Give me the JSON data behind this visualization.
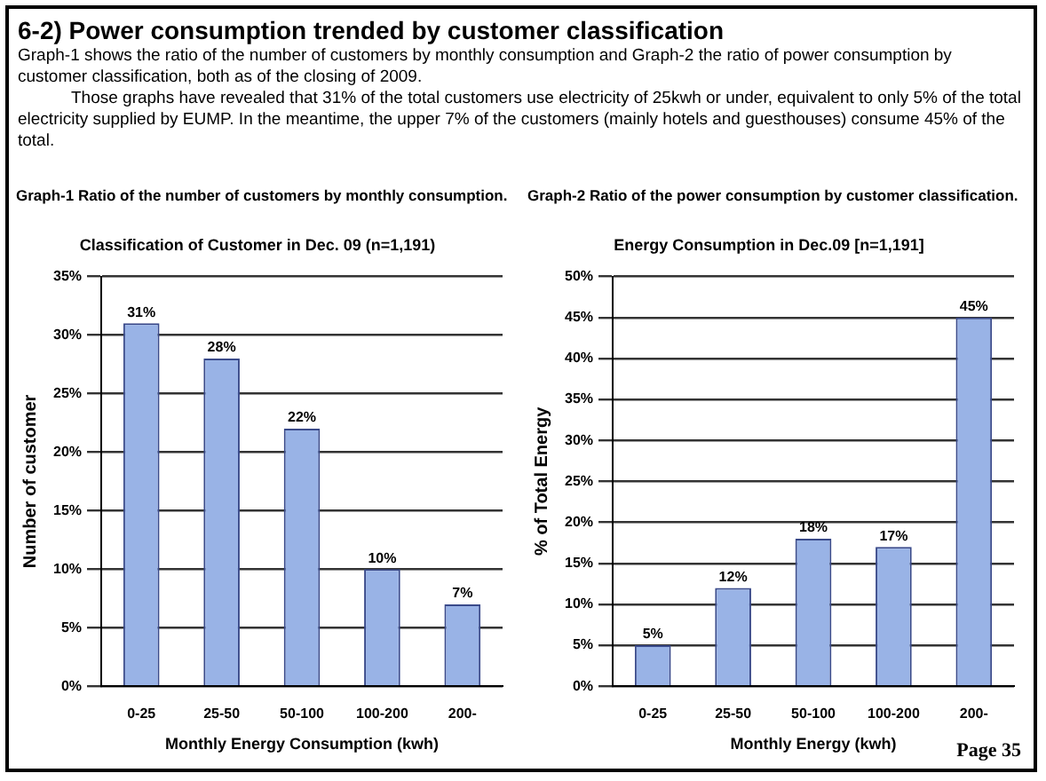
{
  "chart_data": [
    {
      "type": "bar",
      "subtitle": "Graph-1 Ratio of the number of customers by monthly consumption.",
      "title": "Classification of Customer in Dec. 09 (n=1,191)",
      "xlabel": "Monthly Energy Consumption (kwh)",
      "ylabel": "Number of customer",
      "annotations": [
        "6-2) Power consumption trended by customer classification",
        "Graph-1 shows the ratio of the number of customers by monthly consumption and Graph-2 the ratio of power consumption by customer classification, both as of the closing of 2009.",
        "Those graphs have revealed that 31% of the total customers use electricity of 25kwh or under, equivalent to only 5% of the total electricity supplied by EUMP. In the meantime, the upper 7% of the customers (mainly hotels and guesthouses) consume 45% of the total."
      ],
      "categories": [
        "0-25",
        "25-50",
        "50-100",
        "100-200",
        "200-"
      ],
      "values": [
        31,
        28,
        22,
        10,
        7
      ],
      "value_labels": [
        "31%",
        "28%",
        "22%",
        "10%",
        "7%"
      ],
      "color": "#99b3e6",
      "ylim": [
        0,
        35
      ],
      "yticks": [
        {
          "value": 0,
          "label": "0%"
        },
        {
          "value": 5,
          "label": "5%"
        },
        {
          "value": 10,
          "label": "10%"
        },
        {
          "value": 15,
          "label": "15%"
        },
        {
          "value": 20,
          "label": "20%"
        },
        {
          "value": 25,
          "label": "25%"
        },
        {
          "value": 30,
          "label": "30%"
        },
        {
          "value": 35,
          "label": "35%"
        }
      ],
      "grid": "y"
    },
    {
      "type": "bar",
      "subtitle": "Graph-2 Ratio of the power consumption by customer classification.",
      "title": "Energy Consumption in Dec.09 [n=1,191]",
      "xlabel": "Monthly Energy (kwh)",
      "ylabel": "% of Total Energy",
      "annotations": [
        "Page 35"
      ],
      "categories": [
        "0-25",
        "25-50",
        "50-100",
        "100-200",
        "200-"
      ],
      "values": [
        5,
        12,
        18,
        17,
        45
      ],
      "value_labels": [
        "5%",
        "12%",
        "18%",
        "17%",
        "45%"
      ],
      "color": "#99b3e6",
      "ylim": [
        0,
        50
      ],
      "yticks": [
        {
          "value": 0,
          "label": "0%"
        },
        {
          "value": 5,
          "label": "5%"
        },
        {
          "value": 10,
          "label": "10%"
        },
        {
          "value": 15,
          "label": "15%"
        },
        {
          "value": 20,
          "label": "20%"
        },
        {
          "value": 25,
          "label": "25%"
        },
        {
          "value": 30,
          "label": "30%"
        },
        {
          "value": 35,
          "label": "35%"
        },
        {
          "value": 40,
          "label": "40%"
        },
        {
          "value": 45,
          "label": "45%"
        },
        {
          "value": 50,
          "label": "50%"
        }
      ],
      "grid": "y"
    }
  ]
}
